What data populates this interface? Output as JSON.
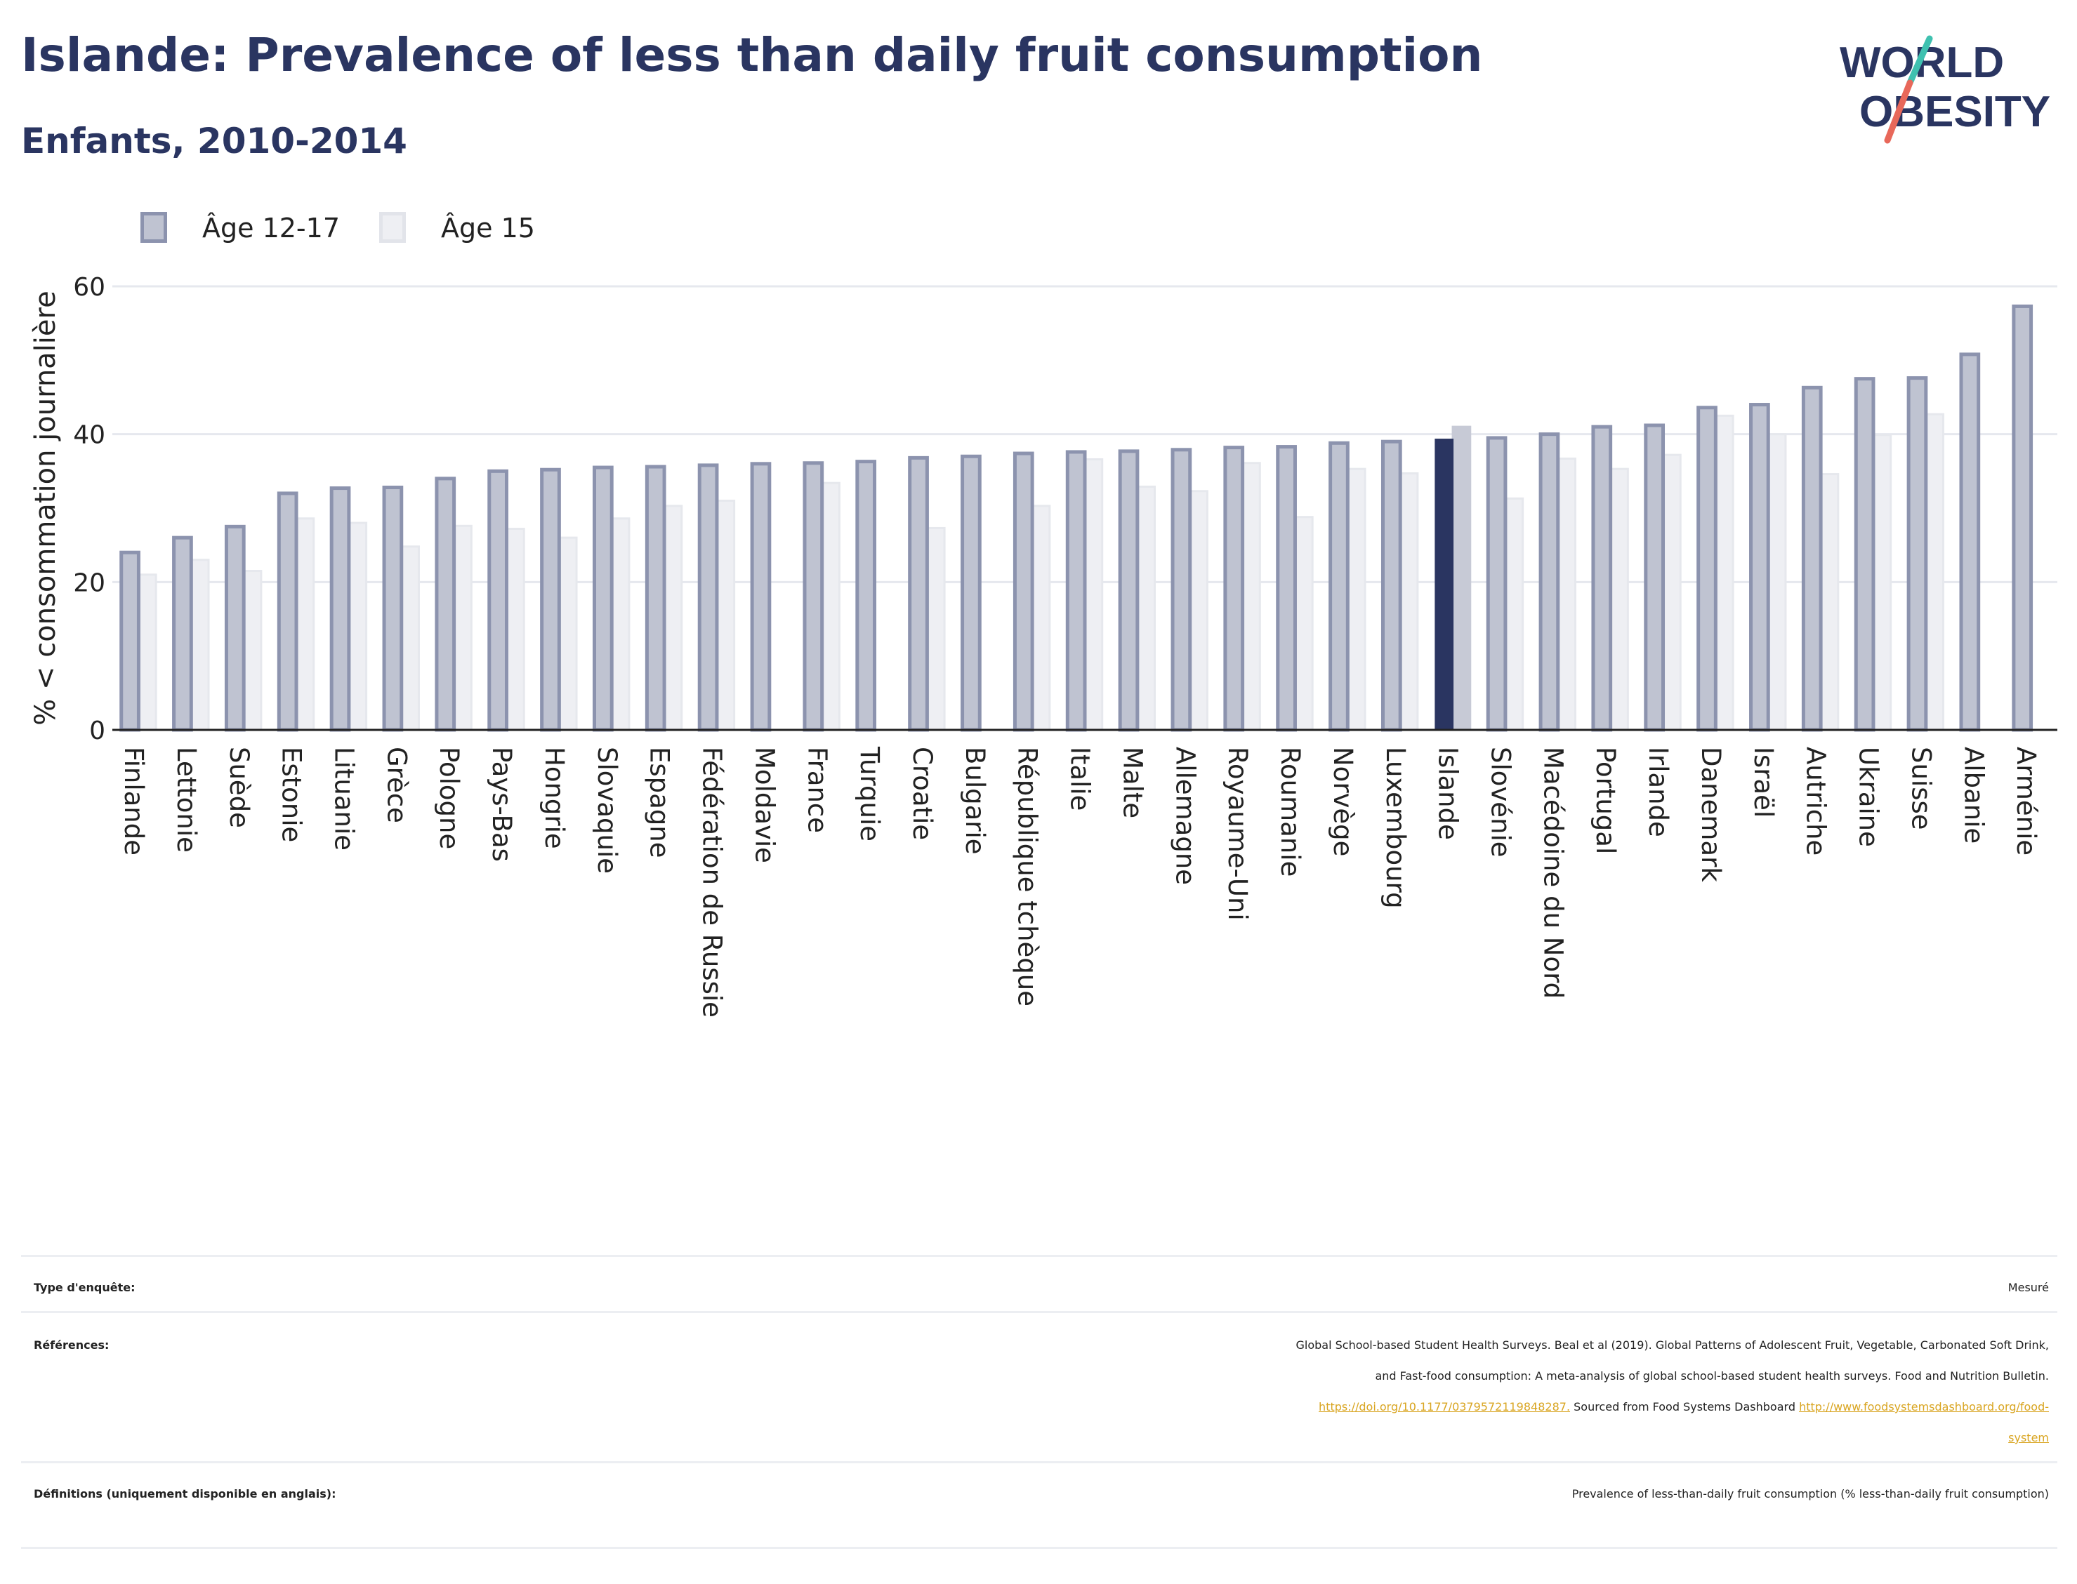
{
  "header": {
    "title": "Islande: Prevalence of less than daily fruit consumption",
    "subtitle": "Enfants, 2010-2014"
  },
  "logo": {
    "line1": "WORLD",
    "line2": "OBESITY",
    "accent_colors": [
      "#e8685a",
      "#3fc1b0"
    ]
  },
  "colors": {
    "age_12_17_fill": "#bfc3d1",
    "age_12_17_stroke": "#8c93ae",
    "age_15_fill": "#eeeff3",
    "highlight": "#2a3561",
    "highlight_age15": "#c7cad6",
    "axis": "#222222",
    "grid": "#e6e8ee"
  },
  "chart_data": {
    "type": "bar",
    "ylabel": "% < consommation journalière",
    "xlabel": "",
    "ylim": [
      0,
      60
    ],
    "yticks": [
      0,
      20,
      40,
      60
    ],
    "grid": true,
    "legend_position": "top-left",
    "highlight_category": "Islande",
    "categories": [
      "Finlande",
      "Lettonie",
      "Suède",
      "Estonie",
      "Lituanie",
      "Grèce",
      "Pologne",
      "Pays-Bas",
      "Hongrie",
      "Slovaquie",
      "Espagne",
      "Fédération de Russie",
      "Moldavie",
      "France",
      "Turquie",
      "Croatie",
      "Bulgarie",
      "République tchèque",
      "Italie",
      "Malte",
      "Allemagne",
      "Royaume-Uni",
      "Roumanie",
      "Norvège",
      "Luxembourg",
      "Islande",
      "Slovénie",
      "Macédoine du Nord",
      "Portugal",
      "Irlande",
      "Danemark",
      "Israël",
      "Autriche",
      "Ukraine",
      "Suisse",
      "Albanie",
      "Arménie"
    ],
    "series": [
      {
        "name": "Âge 12-17",
        "values": [
          24,
          26,
          27.5,
          32,
          32.7,
          32.8,
          34,
          35,
          35.2,
          35.5,
          35.6,
          35.8,
          36,
          36.1,
          36.3,
          36.8,
          37,
          37.4,
          37.6,
          37.7,
          37.9,
          38.2,
          38.3,
          38.8,
          39,
          39.3,
          39.5,
          40,
          41,
          41.2,
          43.6,
          44,
          46.3,
          47.5,
          47.6,
          50.8,
          57.3
        ]
      },
      {
        "name": "Âge 15",
        "values": [
          21,
          23,
          21.5,
          28.6,
          28,
          24.8,
          27.6,
          27.2,
          26,
          28.6,
          30.3,
          31,
          null,
          33.4,
          null,
          27.3,
          null,
          30.3,
          36.6,
          32.9,
          32.3,
          36.1,
          28.8,
          35.3,
          34.7,
          41,
          31.3,
          36.7,
          35.3,
          37.2,
          42.5,
          40,
          34.6,
          39.9,
          42.7,
          null,
          null
        ]
      }
    ]
  },
  "meta": {
    "survey_type_label": "Type d'enquête:",
    "survey_type_value": "Mesuré",
    "references_label": "Références:",
    "references_line1": "Global School-based Student Health Surveys. Beal et al (2019). Global Patterns of Adolescent Fruit, Vegetable, Carbonated Soft Drink,",
    "references_line2": "and Fast-food consumption: A meta-analysis of global school-based student health surveys. Food and Nutrition Bulletin.",
    "references_link1": "https://doi.org/10.1177/0379572119848287.",
    "references_mid": " Sourced from Food Systems Dashboard ",
    "references_link2a": "http://www.foodsystemsdashboard.org/food-",
    "references_link2b": "system",
    "definitions_label": "Définitions (uniquement disponible en anglais):",
    "definitions_value": "Prevalence of less-than-daily fruit consumption (% less-than-daily fruit consumption)"
  }
}
